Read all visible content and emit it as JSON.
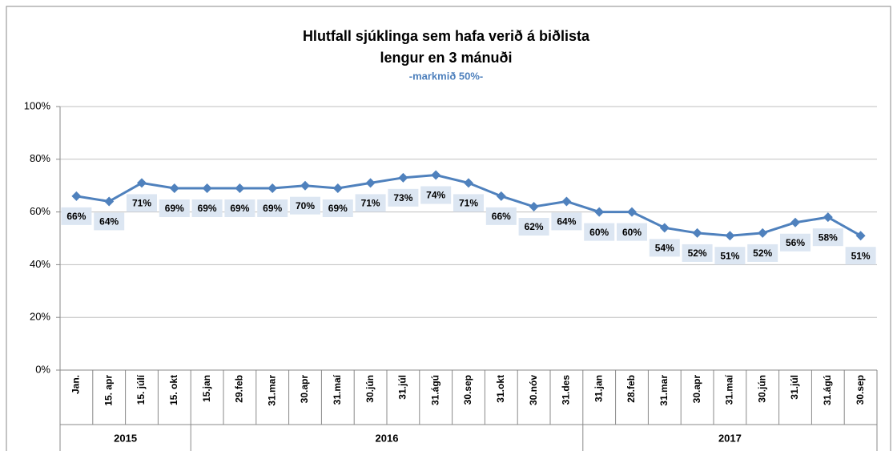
{
  "chart_data": {
    "type": "line",
    "title": [
      "Hlutfall sjúklinga sem hafa verið á biðlista",
      "lengur en 3 mánuði"
    ],
    "subtitle": "-markmið 50%-",
    "categories": [
      "Jan.",
      "15. apr",
      "15. júlí",
      "15. okt",
      "15.jan",
      "29.feb",
      "31.mar",
      "30.apr",
      "31.maí",
      "30.jún",
      "31.júl",
      "31.ágú",
      "30.sep",
      "31.okt",
      "30.nóv",
      "31.des",
      "31.jan",
      "28.feb",
      "31.mar",
      "30.apr",
      "31.maí",
      "30.jún",
      "31.júl",
      "31.ágú",
      "30.sep"
    ],
    "groups": [
      {
        "label": "2015",
        "count": 4
      },
      {
        "label": "2016",
        "count": 12
      },
      {
        "label": "2017",
        "count": 9
      }
    ],
    "values": [
      66,
      64,
      71,
      69,
      69,
      69,
      69,
      70,
      69,
      71,
      73,
      74,
      71,
      66,
      62,
      64,
      60,
      60,
      54,
      52,
      51,
      52,
      56,
      58,
      51
    ],
    "value_labels": [
      "66%",
      "64%",
      "71%",
      "69%",
      "69%",
      "69%",
      "69%",
      "70%",
      "69%",
      "71%",
      "73%",
      "74%",
      "71%",
      "66%",
      "62%",
      "64%",
      "60%",
      "60%",
      "54%",
      "52%",
      "51%",
      "52%",
      "56%",
      "58%",
      "51%"
    ],
    "color": "#4f81bd",
    "ylim": [
      0,
      100
    ],
    "yticks": [
      {
        "value": 0,
        "label": "0%"
      },
      {
        "value": 20,
        "label": "20%"
      },
      {
        "value": 40,
        "label": "40%"
      },
      {
        "value": 60,
        "label": "60%"
      },
      {
        "value": 80,
        "label": "80%"
      },
      {
        "value": 100,
        "label": "100%"
      }
    ],
    "grid": true
  }
}
